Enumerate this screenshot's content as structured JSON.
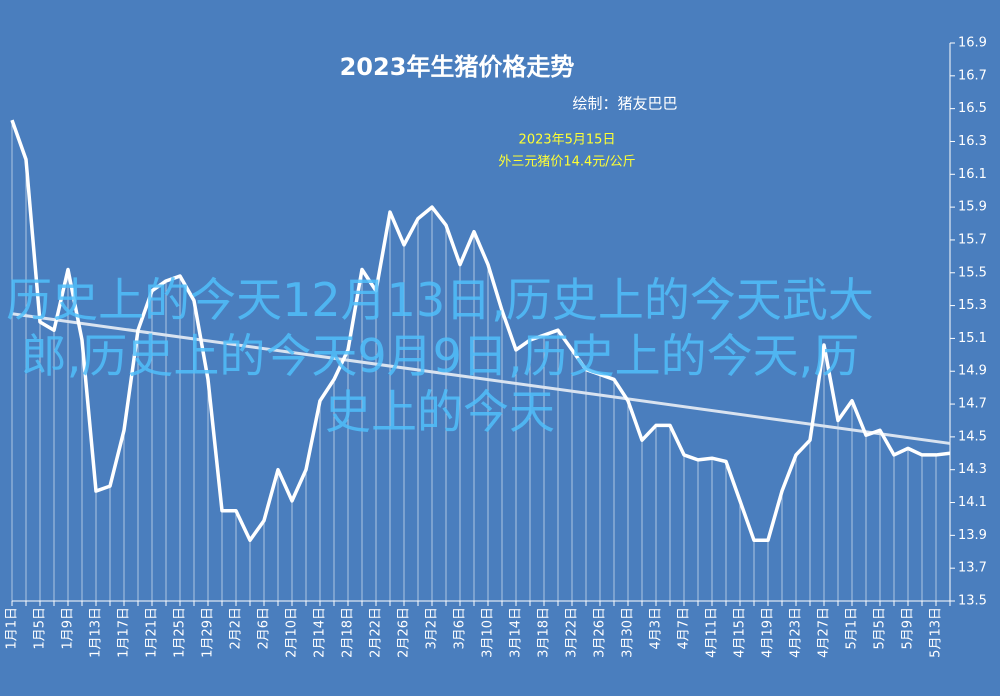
{
  "chart_data": {
    "type": "line",
    "title": "2023年生猪价格走势",
    "subtitle": "绘制：猪友巴巴",
    "annotation": [
      "2023年5月15日",
      "外三元猪价14.4元/公斤"
    ],
    "categories": [
      "1月1日",
      null,
      "1月5日",
      null,
      "1月9日",
      null,
      "1月13日",
      null,
      "1月17日",
      null,
      "1月21日",
      null,
      "1月25日",
      null,
      "1月29日",
      null,
      "2月2日",
      null,
      "2月6日",
      null,
      "2月10日",
      null,
      "2月14日",
      null,
      "2月18日",
      null,
      "2月22日",
      null,
      "2月26日",
      null,
      "3月2日",
      null,
      "3月6日",
      null,
      "3月10日",
      null,
      "3月14日",
      null,
      "3月18日",
      null,
      "3月22日",
      null,
      "3月26日",
      null,
      "3月30日",
      null,
      "4月3日",
      null,
      "4月7日",
      null,
      "4月11日",
      null,
      "4月15日",
      null,
      "4月19日",
      null,
      "4月23日",
      null,
      "4月27日",
      null,
      "5月1日",
      null,
      "5月5日",
      null,
      "5月9日",
      null,
      "5月13日",
      null
    ],
    "values": [
      16.43,
      16.19,
      15.2,
      15.15,
      15.52,
      15.09,
      14.17,
      14.2,
      14.54,
      15.15,
      15.39,
      15.45,
      15.48,
      15.33,
      14.85,
      14.05,
      14.05,
      13.87,
      13.99,
      14.3,
      14.11,
      14.3,
      14.72,
      14.85,
      15.03,
      15.52,
      15.39,
      15.87,
      15.67,
      15.83,
      15.9,
      15.79,
      15.55,
      15.75,
      15.55,
      15.27,
      15.03,
      15.09,
      15.12,
      15.15,
      15.03,
      14.91,
      14.88,
      14.85,
      14.72,
      14.48,
      14.57,
      14.57,
      14.39,
      14.36,
      14.37,
      14.35,
      14.11,
      13.87,
      13.87,
      14.17,
      14.39,
      14.48,
      15.06,
      14.6,
      14.72,
      14.51,
      14.54,
      14.39,
      14.43,
      14.39,
      14.39,
      14.4
    ],
    "color": "#ffffff",
    "trendline": {
      "start": 15.25,
      "end": 14.46,
      "color": "#d9e3f0"
    },
    "ylim": [
      13.5,
      16.9
    ],
    "yticks": [
      13.5,
      13.7,
      13.9,
      14.1,
      14.3,
      14.5,
      14.7,
      14.9,
      15.1,
      15.3,
      15.5,
      15.7,
      15.9,
      16.1,
      16.3,
      16.5,
      16.7,
      16.9
    ]
  },
  "overlay_text": "历史上的今天12月13日,历史上的今天武大郎,历史上的今天9月9日,历史上的今天,历史上的今天"
}
